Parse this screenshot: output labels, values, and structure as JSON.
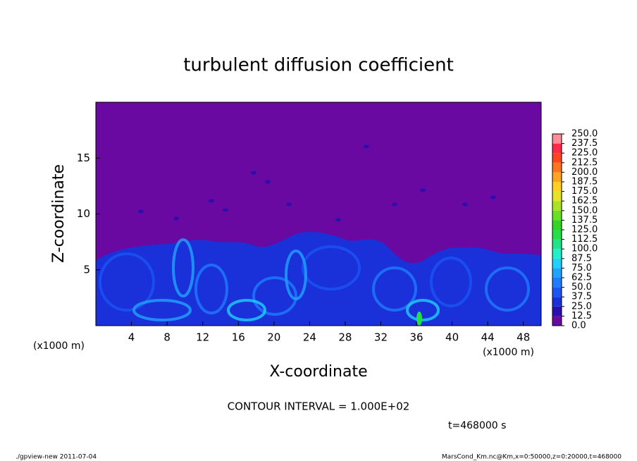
{
  "chart_data": {
    "type": "contour",
    "title": "turbulent diffusion coefficient",
    "xlabel": "X-coordinate",
    "ylabel": "Z-coordinate",
    "x_unit": "(x1000 m)",
    "y_unit": "(x1000 m)",
    "xlim": [
      0,
      50
    ],
    "xticks": [
      4,
      8,
      12,
      16,
      20,
      24,
      28,
      32,
      36,
      40,
      44,
      48
    ],
    "ylim": [
      0,
      20
    ],
    "yticks": [
      5,
      10,
      15
    ],
    "colorbar": {
      "levels": [
        {
          "value": 0,
          "label": "0.0"
        },
        12.5,
        {
          "value": 25,
          "label": "25.0"
        },
        37.5,
        {
          "value": 50,
          "label": "50.0"
        },
        62.5,
        {
          "value": 75,
          "label": "75.0"
        },
        87.5,
        {
          "value": 100,
          "label": "100.0"
        },
        112.5,
        {
          "value": 125,
          "label": "125.0"
        },
        137.5,
        {
          "value": 150,
          "label": "150.0"
        },
        162.5,
        {
          "value": 175,
          "label": "175.0"
        },
        187.5,
        {
          "value": 200,
          "label": "200.0"
        },
        212.5,
        {
          "value": 225,
          "label": "225.0"
        },
        237.5,
        {
          "value": 250,
          "label": "250.0"
        }
      ],
      "colors": [
        "#6a08a2",
        "#2a0fb0",
        "#1a30d8",
        "#1a55f5",
        "#1e7cff",
        "#20a4ff",
        "#20d0ff",
        "#20f0c8",
        "#20e488",
        "#24e048",
        "#34d424",
        "#68e024",
        "#a8e424",
        "#e4e424",
        "#ffd020",
        "#ffa41e",
        "#ff741e",
        "#ff441e",
        "#ff2a48",
        "#ff8c96"
      ]
    },
    "annotations": [
      "CONTOUR INTERVAL = 1.000E+02",
      "t=468000 s"
    ],
    "footer_left": "./gpview-new  2011-07-04",
    "footer_right": "MarsCond_Km.nc@Km,x=0:50000,z=0:20000,t=468000"
  }
}
